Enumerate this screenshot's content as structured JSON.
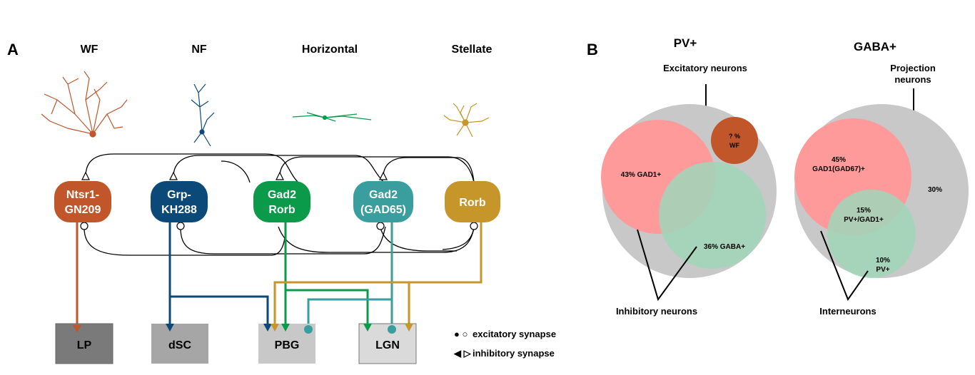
{
  "panel_a": {
    "label": "A",
    "headers": [
      "WF",
      "NF",
      "Horizontal",
      "Stellate"
    ],
    "cells": [
      {
        "line1": "Ntsr1-",
        "line2": "GN209",
        "color": "#C0562A"
      },
      {
        "line1": "Grp-",
        "line2": "KH288",
        "color": "#0B4A78"
      },
      {
        "line1": "Gad2",
        "line2": "Rorb",
        "color": "#0A9A4A"
      },
      {
        "line1": "Gad2",
        "line2": "(GAD65)",
        "color": "#3A9E9E"
      },
      {
        "line1": "Rorb",
        "line2": "",
        "color": "#C7962B"
      }
    ],
    "targets": [
      "LP",
      "dSC",
      "PBG",
      "LGN"
    ],
    "legend": {
      "excitatory_symbols": "● ○",
      "excitatory": "excitatory synapse",
      "inhibitory_symbols": "◀ ▷",
      "inhibitory": "inhibitory synapse"
    }
  },
  "panel_b": {
    "label": "B",
    "pv": {
      "title": "PV+",
      "excitatory_label": "Excitatory neurons",
      "gad1": "43% GAD1+",
      "gaba": "36% GABA+",
      "wf_line1": "? %",
      "wf_line2": "WF",
      "inhibitory_label": "Inhibitory neurons"
    },
    "gaba": {
      "title": "GABA+",
      "projection_line1": "Projection",
      "projection_line2": "neurons",
      "gad1_line1": "45%",
      "gad1_line2": "GAD1(GAD67)+",
      "overlap_line1": "15%",
      "overlap_line2": "PV+/GAD1+",
      "pv_line1": "10%",
      "pv_line2": "PV+",
      "outer": "30%",
      "interneurons_label": "Interneurons"
    }
  },
  "colors": {
    "venn_outer": "#C8C8C8",
    "venn_red": "#FF9A9A",
    "venn_green": "#9FD6B8",
    "wf": "#C0562A",
    "lp": "#7A7A7A",
    "dsc": "#A6A6A6",
    "pbg": "#C8C8C8",
    "lgn": "#DADADA"
  }
}
